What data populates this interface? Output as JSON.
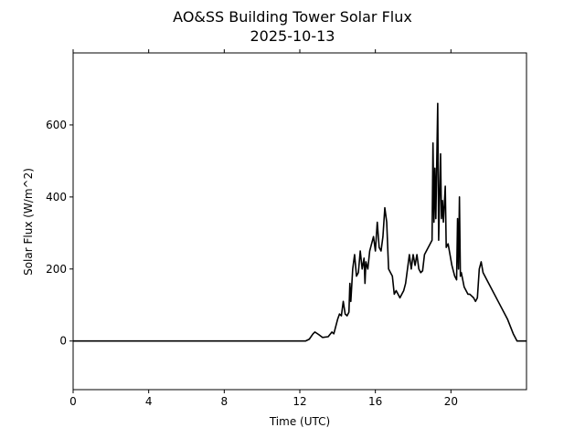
{
  "chart_data": {
    "type": "line",
    "title": "AO&SS Building Tower Solar Flux",
    "subtitle": "2025-10-13",
    "xlabel": "Time (UTC)",
    "ylabel": "Solar Flux (W/m^2)",
    "xlim": [
      0,
      24
    ],
    "ylim": [
      -135,
      800
    ],
    "xticks": [
      0,
      4,
      8,
      12,
      16,
      20
    ],
    "yticks": [
      0,
      200,
      400,
      600
    ],
    "series": [
      {
        "name": "Solar Flux",
        "color": "#000000",
        "x": [
          0,
          12.3,
          12.5,
          12.7,
          12.8,
          13.0,
          13.2,
          13.5,
          13.7,
          13.8,
          13.9,
          14.0,
          14.1,
          14.2,
          14.3,
          14.4,
          14.5,
          14.6,
          14.65,
          14.7,
          14.8,
          14.9,
          15.0,
          15.1,
          15.2,
          15.3,
          15.4,
          15.45,
          15.5,
          15.6,
          15.7,
          15.8,
          15.9,
          16.0,
          16.1,
          16.2,
          16.3,
          16.4,
          16.5,
          16.6,
          16.7,
          16.8,
          16.9,
          17.0,
          17.1,
          17.2,
          17.3,
          17.4,
          17.5,
          17.6,
          17.7,
          17.8,
          17.9,
          18.0,
          18.1,
          18.2,
          18.3,
          18.4,
          18.5,
          18.6,
          18.8,
          19.0,
          19.05,
          19.1,
          19.15,
          19.2,
          19.3,
          19.35,
          19.45,
          19.5,
          19.55,
          19.6,
          19.7,
          19.75,
          19.85,
          19.95,
          20.05,
          20.2,
          20.3,
          20.35,
          20.4,
          20.45,
          20.5,
          20.55,
          20.7,
          20.9,
          21.0,
          21.2,
          21.3,
          21.4,
          21.5,
          21.6,
          21.7,
          22.0,
          22.5,
          23.0,
          23.3,
          23.5,
          24.0
        ],
        "values": [
          0,
          0,
          5,
          20,
          25,
          18,
          10,
          12,
          25,
          20,
          40,
          60,
          75,
          70,
          110,
          75,
          70,
          80,
          160,
          110,
          200,
          240,
          180,
          190,
          250,
          200,
          230,
          160,
          220,
          200,
          250,
          270,
          290,
          250,
          330,
          260,
          250,
          290,
          370,
          330,
          200,
          190,
          180,
          130,
          140,
          130,
          120,
          130,
          140,
          160,
          200,
          240,
          200,
          240,
          210,
          240,
          200,
          190,
          195,
          240,
          260,
          280,
          550,
          330,
          480,
          340,
          660,
          280,
          520,
          340,
          390,
          330,
          430,
          260,
          270,
          240,
          210,
          180,
          170,
          340,
          200,
          400,
          180,
          190,
          150,
          130,
          130,
          120,
          110,
          120,
          200,
          220,
          190,
          160,
          110,
          60,
          20,
          0,
          0
        ]
      }
    ]
  }
}
